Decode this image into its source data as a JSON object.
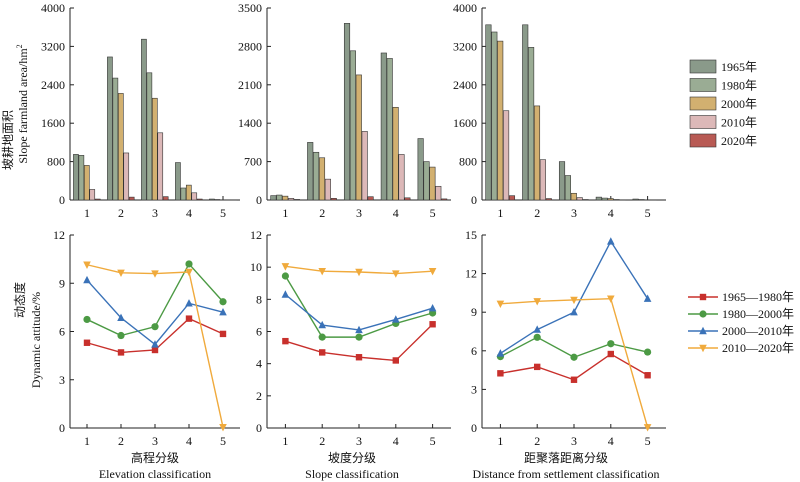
{
  "colors": {
    "1965年": "#8a9a8a",
    "1980年": "#9aac94",
    "2000年": "#d2b070",
    "2010年": "#dcb8b8",
    "2020年": "#b85a54",
    "1965—1980年": "#c8302c",
    "1980—2000年": "#4c9a44",
    "2000—2010年": "#3a72b8",
    "2010—2020年": "#f0aa3c"
  },
  "chart_data": [
    {
      "type": "bar",
      "panel": "elevation-area",
      "ylabel": "坡耕地面积 Slope farmland area/hm²",
      "ylim": [
        0,
        4000
      ],
      "yticks": [
        0,
        800,
        1600,
        2400,
        3200,
        4000
      ],
      "categories": [
        "1",
        "2",
        "3",
        "4",
        "5"
      ],
      "series": [
        {
          "name": "1965年",
          "values": [
            950,
            2980,
            3350,
            780,
            20
          ]
        },
        {
          "name": "1980年",
          "values": [
            930,
            2540,
            2650,
            250,
            10
          ]
        },
        {
          "name": "2000年",
          "values": [
            720,
            2220,
            2120,
            310,
            5
          ]
        },
        {
          "name": "2010年",
          "values": [
            220,
            980,
            1400,
            150,
            5
          ]
        },
        {
          "name": "2020年",
          "values": [
            20,
            60,
            70,
            20,
            5
          ]
        }
      ]
    },
    {
      "type": "bar",
      "panel": "slope-area",
      "ylim": [
        0,
        3500
      ],
      "yticks": [
        0,
        700,
        1400,
        2100,
        2800,
        3500
      ],
      "categories": [
        "1",
        "2",
        "3",
        "4",
        "5"
      ],
      "series": [
        {
          "name": "1965年",
          "values": [
            80,
            1050,
            3220,
            2680,
            1120
          ]
        },
        {
          "name": "1980年",
          "values": [
            90,
            870,
            2720,
            2580,
            700
          ]
        },
        {
          "name": "2000年",
          "values": [
            70,
            770,
            2280,
            1690,
            600
          ]
        },
        {
          "name": "2010年",
          "values": [
            30,
            380,
            1250,
            830,
            250
          ]
        },
        {
          "name": "2020年",
          "values": [
            10,
            30,
            60,
            40,
            20
          ]
        }
      ]
    },
    {
      "type": "bar",
      "panel": "distance-area",
      "ylim": [
        0,
        4000
      ],
      "yticks": [
        0,
        800,
        1600,
        2400,
        3200,
        4000
      ],
      "categories": [
        "1",
        "2",
        "3",
        "4",
        "5"
      ],
      "series": [
        {
          "name": "1965年",
          "values": [
            3650,
            3650,
            800,
            60,
            20
          ]
        },
        {
          "name": "1980年",
          "values": [
            3500,
            3180,
            510,
            40,
            10
          ]
        },
        {
          "name": "2000年",
          "values": [
            3310,
            1960,
            140,
            30,
            5
          ]
        },
        {
          "name": "2010年",
          "values": [
            1860,
            840,
            50,
            10,
            5
          ]
        },
        {
          "name": "2020年",
          "values": [
            90,
            30,
            10,
            5,
            0
          ]
        }
      ]
    },
    {
      "type": "line",
      "panel": "elevation-dynamic",
      "xlabel": "高程分级 Elevation classification",
      "ylabel": "动态度 Dynamic attitude/%",
      "ylim": [
        0,
        12
      ],
      "yticks": [
        0,
        3,
        6,
        9,
        12
      ],
      "x": [
        1,
        2,
        3,
        4,
        5
      ],
      "series": [
        {
          "name": "1965—1980年",
          "marker": "square",
          "values": [
            5.3,
            4.7,
            4.85,
            6.8,
            5.85
          ]
        },
        {
          "name": "1980—2000年",
          "marker": "circle",
          "values": [
            6.75,
            5.75,
            6.3,
            10.2,
            7.85
          ]
        },
        {
          "name": "2000—2010年",
          "marker": "triangle-up",
          "values": [
            9.2,
            6.85,
            5.2,
            7.75,
            7.2
          ]
        },
        {
          "name": "2010—2020年",
          "marker": "triangle-down",
          "values": [
            10.15,
            9.65,
            9.6,
            9.7,
            0.05
          ]
        }
      ]
    },
    {
      "type": "line",
      "panel": "slope-dynamic",
      "xlabel": "坡度分级 Slope classification",
      "ylim": [
        0,
        12
      ],
      "yticks": [
        0,
        2,
        4,
        6,
        8,
        10,
        12
      ],
      "x": [
        1,
        2,
        3,
        4,
        5
      ],
      "series": [
        {
          "name": "1965—1980年",
          "marker": "square",
          "values": [
            5.4,
            4.7,
            4.4,
            4.2,
            6.45
          ]
        },
        {
          "name": "1980—2000年",
          "marker": "circle",
          "values": [
            9.45,
            5.65,
            5.65,
            6.5,
            7.15
          ]
        },
        {
          "name": "2000—2010年",
          "marker": "triangle-up",
          "values": [
            8.3,
            6.4,
            6.1,
            6.75,
            7.45
          ]
        },
        {
          "name": "2010—2020年",
          "marker": "triangle-down",
          "values": [
            10.05,
            9.75,
            9.7,
            9.6,
            9.75
          ]
        }
      ]
    },
    {
      "type": "line",
      "panel": "distance-dynamic",
      "xlabel": "距聚落距离分级 Distance from settlement classification",
      "ylim": [
        0,
        15
      ],
      "yticks": [
        0,
        3,
        6,
        9,
        12,
        15
      ],
      "x": [
        1,
        2,
        3,
        4,
        5
      ],
      "series": [
        {
          "name": "1965—1980年",
          "marker": "square",
          "values": [
            4.25,
            4.75,
            3.75,
            5.75,
            4.1
          ]
        },
        {
          "name": "1980—2000年",
          "marker": "circle",
          "values": [
            5.55,
            7.05,
            5.5,
            6.55,
            5.9
          ]
        },
        {
          "name": "2000—2010年",
          "marker": "triangle-up",
          "values": [
            5.8,
            7.65,
            9.0,
            14.5,
            10.05
          ]
        },
        {
          "name": "2010—2020年",
          "marker": "triangle-down",
          "values": [
            9.65,
            9.85,
            9.95,
            10.05,
            0.05
          ]
        }
      ]
    }
  ],
  "labels": {
    "bar_ylabel_cn": "坡耕地面积",
    "bar_ylabel_en": "Slope farmland area/hm",
    "bar_ylabel_sup": "2",
    "line_ylabel_cn": "动态度",
    "line_ylabel_en": "Dynamic attitude/%",
    "xlabel_cn": [
      "高程分级",
      "坡度分级",
      "距聚落距离分级"
    ],
    "xlabel_en": [
      "Elevation classification",
      "Slope classification",
      "Distance from settlement classification"
    ]
  },
  "legend_bar": [
    "1965年",
    "1980年",
    "2000年",
    "2010年",
    "2020年"
  ],
  "legend_line": [
    "1965—1980年",
    "1980—2000年",
    "2000—2010年",
    "2010—2020年"
  ]
}
